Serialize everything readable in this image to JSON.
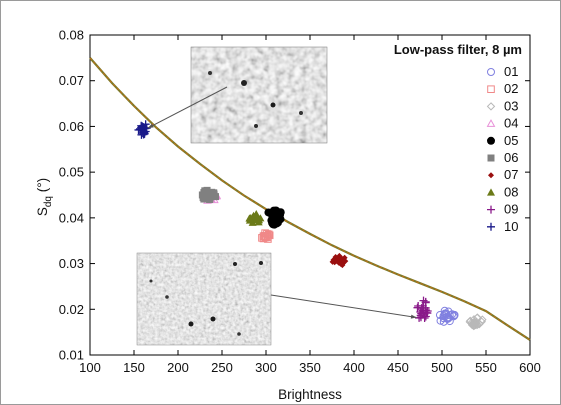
{
  "chart_data": {
    "type": "scatter",
    "title": "Low-pass filter, 8 µm",
    "xlabel": "Brightness",
    "ylabel_main": "S",
    "ylabel_sub": "dq",
    "ylabel_unit": " (°)",
    "xlim": [
      100,
      600
    ],
    "ylim": [
      0.01,
      0.08
    ],
    "xticks": [
      "100",
      "150",
      "200",
      "250",
      "300",
      "350",
      "400",
      "450",
      "500",
      "550",
      "600"
    ],
    "yticks": [
      "0.01",
      "0.02",
      "0.03",
      "0.04",
      "0.05",
      "0.06",
      "0.07",
      "0.08"
    ],
    "legend_position": "top-right",
    "fit_curve": {
      "x": [
        100,
        125,
        150,
        175,
        200,
        225,
        250,
        275,
        300,
        325,
        350,
        375,
        400,
        425,
        450,
        475,
        500,
        525,
        550,
        575,
        600
      ],
      "y": [
        0.075,
        0.0695,
        0.0645,
        0.0598,
        0.0556,
        0.0518,
        0.0482,
        0.0449,
        0.0419,
        0.0391,
        0.0365,
        0.034,
        0.0317,
        0.0296,
        0.0276,
        0.0257,
        0.0238,
        0.0218,
        0.0196,
        0.0164,
        0.0133
      ]
    },
    "series": [
      {
        "name": "01",
        "marker": "open-circle",
        "color": "#8080e0",
        "center": [
          507,
          0.0185
        ],
        "spread": [
          9,
          0.0012
        ],
        "count": 22
      },
      {
        "name": "02",
        "marker": "open-square",
        "color": "#f08888",
        "center": [
          300,
          0.036
        ],
        "spread": [
          5,
          0.001
        ],
        "count": 14
      },
      {
        "name": "03",
        "marker": "open-diamond",
        "color": "#b8b8b8",
        "center": [
          537,
          0.0172
        ],
        "spread": [
          8,
          0.001
        ],
        "count": 22
      },
      {
        "name": "04",
        "marker": "open-triangle",
        "color": "#e890d8",
        "center": [
          238,
          0.0448
        ],
        "spread": [
          6,
          0.001
        ],
        "count": 16
      },
      {
        "name": "05",
        "marker": "filled-circle",
        "color": "#000000",
        "center": [
          310,
          0.0402
        ],
        "spread": [
          7,
          0.0018
        ],
        "count": 40
      },
      {
        "name": "06",
        "marker": "filled-square",
        "color": "#808080",
        "center": [
          234,
          0.045
        ],
        "spread": [
          6,
          0.001
        ],
        "count": 26
      },
      {
        "name": "07",
        "marker": "filled-diamond",
        "color": "#9a0f0f",
        "center": [
          384,
          0.0306
        ],
        "spread": [
          7,
          0.0008
        ],
        "count": 30
      },
      {
        "name": "08",
        "marker": "filled-triangle",
        "color": "#6b7a18",
        "center": [
          287,
          0.0398
        ],
        "spread": [
          6,
          0.0012
        ],
        "count": 26
      },
      {
        "name": "09",
        "marker": "plus",
        "color": "#8a1a8a",
        "center": [
          479,
          0.0195
        ],
        "spread": [
          6,
          0.0022
        ],
        "count": 26
      },
      {
        "name": "10",
        "marker": "plus",
        "color": "#1a1a8a",
        "center": [
          160,
          0.0592
        ],
        "spread": [
          5,
          0.0012
        ],
        "count": 24
      }
    ],
    "insets": [
      {
        "name": "inset-image-upper",
        "arrow_to": [
          160,
          0.0592
        ],
        "tone": "#9a9a9a",
        "dark_spots": true
      },
      {
        "name": "inset-image-lower",
        "arrow_to": [
          478,
          0.0182
        ],
        "tone": "#b0b0b0",
        "dark_spots": true
      }
    ]
  }
}
